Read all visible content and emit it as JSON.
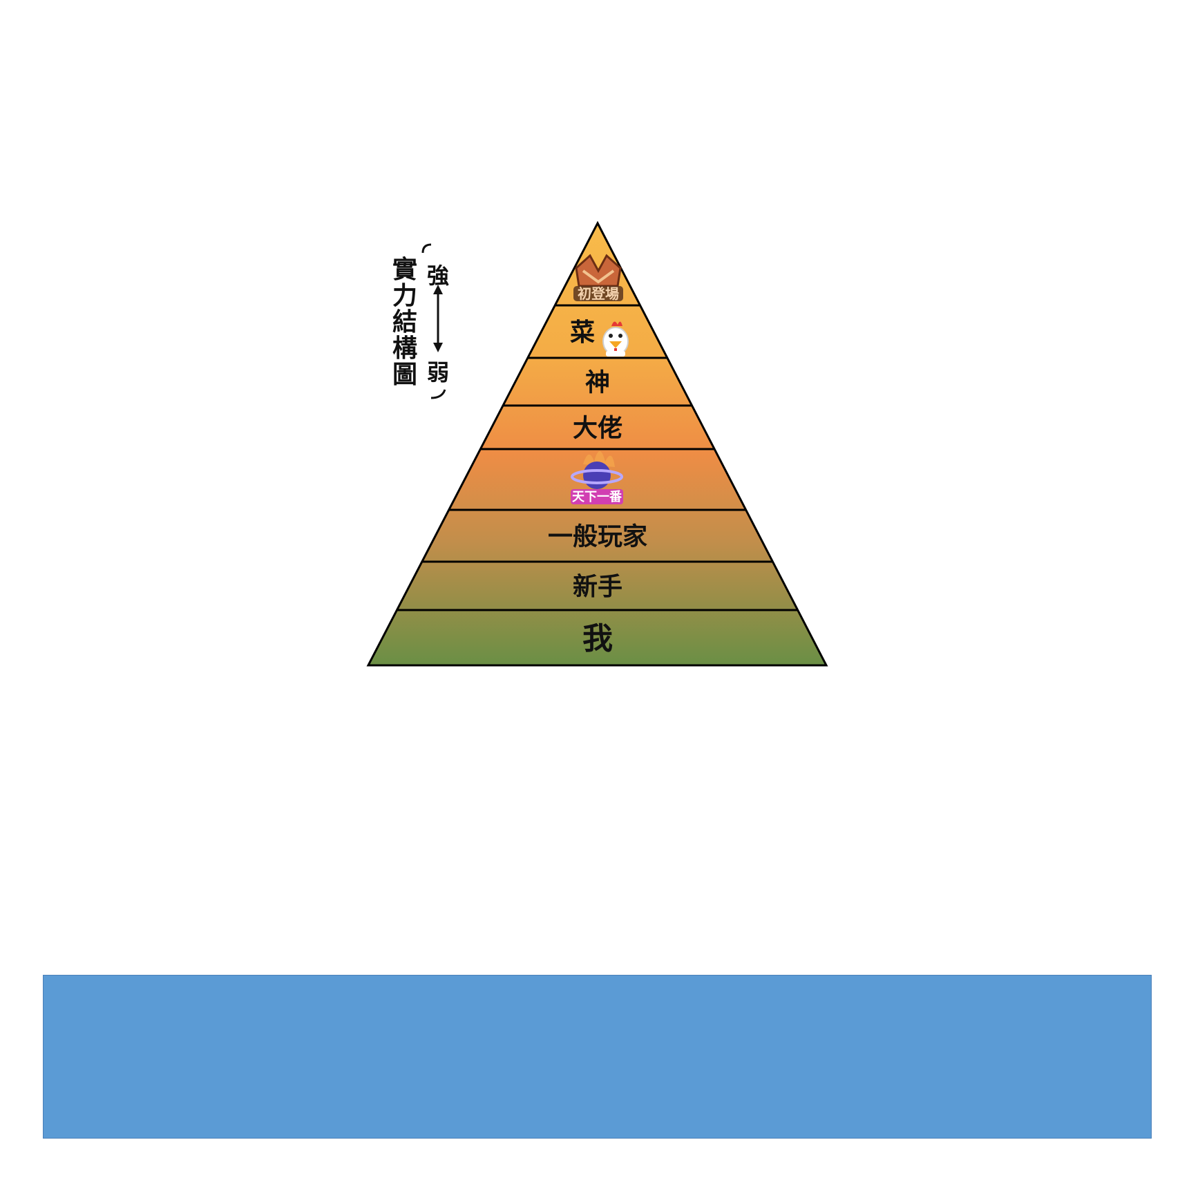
{
  "diagram": {
    "title_vertical": "實力結構圖",
    "range_top_label": "強",
    "range_bottom_label": "弱",
    "tiers": [
      {
        "label": "",
        "icon": "shop-badge-icon",
        "badge_text": "初登場",
        "color": "#f7b648"
      },
      {
        "label": "菜",
        "icon": "chicken-icon",
        "color": "#f6b246"
      },
      {
        "label": "神",
        "icon": "",
        "color": "#f3aa46"
      },
      {
        "label": "大佬",
        "icon": "",
        "color": "#ef9a45"
      },
      {
        "label": "",
        "icon": "planet-logo-icon",
        "badge_text": "天下一番",
        "color": "#e08a45"
      },
      {
        "label": "一般玩家",
        "icon": "",
        "color": "#bf8f4c"
      },
      {
        "label": "新手",
        "icon": "",
        "color": "#9e8f4d"
      },
      {
        "label": "我",
        "icon": "",
        "color": "#7b904c"
      }
    ],
    "bottom_box_color": "#5b9bd5"
  }
}
